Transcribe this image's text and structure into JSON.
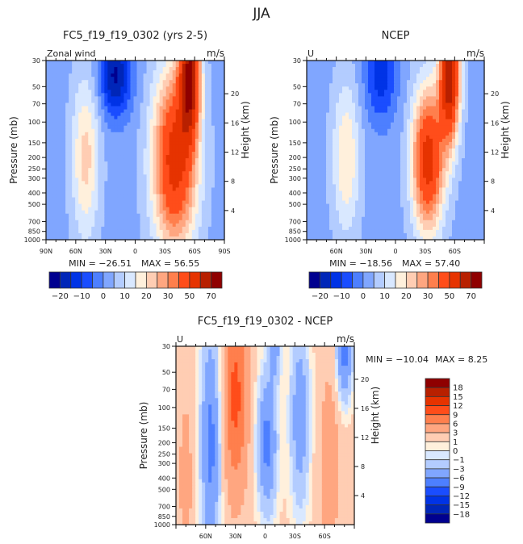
{
  "main_title": "JJA",
  "chart_data": [
    {
      "type": "heatmap",
      "id": "model",
      "title": "FC5_f19_f19_0302 (yrs 2-5)",
      "left_label": "Zonal wind",
      "units": "m/s",
      "ylabel": "Pressure (mb)",
      "y2label": "Height (km)",
      "x_ticks": [
        "90N",
        "60N",
        "30N",
        "0",
        "30S",
        "60S",
        "90S"
      ],
      "x_range": [
        90,
        -90
      ],
      "y_ticks": [
        30,
        50,
        70,
        100,
        150,
        200,
        250,
        300,
        400,
        500,
        700,
        850,
        1000
      ],
      "y_range": [
        30,
        1000
      ],
      "y2_ticks": [
        4,
        8,
        12,
        16,
        20
      ],
      "min_label": "MIN = −26.51",
      "max_label": "MAX =   56.55",
      "min": -26.51,
      "max": 56.55,
      "features": [
        {
          "lat": 20,
          "p": 40,
          "value": -26,
          "wlat": 16,
          "wlogp": 0.35
        },
        {
          "lat": 50,
          "p": 200,
          "value": 17,
          "wlat": 14,
          "wlogp": 0.7
        },
        {
          "lat": -40,
          "p": 210,
          "value": 45,
          "wlat": 22,
          "wlogp": 0.75
        },
        {
          "lat": -55,
          "p": 40,
          "value": 56,
          "wlat": 10,
          "wlogp": 0.5
        }
      ]
    },
    {
      "type": "heatmap",
      "id": "obs",
      "title": "NCEP",
      "left_label": "U",
      "units": "m/s",
      "ylabel": "Pressure (mb)",
      "y2label": "Height (km)",
      "x_ticks": [
        "60N",
        "30N",
        "0",
        "30S",
        "60S"
      ],
      "x_range": [
        90,
        -90
      ],
      "y_ticks": [
        30,
        50,
        70,
        100,
        150,
        200,
        250,
        300,
        400,
        500,
        700,
        850,
        1000
      ],
      "y_range": [
        30,
        1000
      ],
      "y2_ticks": [
        4,
        8,
        12,
        16,
        20
      ],
      "min_label": "MIN = −18.56",
      "max_label": "MAX =   57.40",
      "min": -18.56,
      "max": 57.4,
      "features": [
        {
          "lat": 15,
          "p": 40,
          "value": -18,
          "wlat": 16,
          "wlogp": 0.4
        },
        {
          "lat": 50,
          "p": 200,
          "value": 15,
          "wlat": 14,
          "wlogp": 0.65
        },
        {
          "lat": -33,
          "p": 210,
          "value": 45,
          "wlat": 16,
          "wlogp": 0.6
        },
        {
          "lat": -55,
          "p": 40,
          "value": 57,
          "wlat": 10,
          "wlogp": 0.55
        }
      ]
    },
    {
      "type": "heatmap",
      "id": "diff",
      "title": "FC5_f19_f19_0302 - NCEP",
      "left_label": "U",
      "units": "m/s",
      "ylabel": "Pressure (mb)",
      "y2label": "Height (km)",
      "x_ticks": [
        "60N",
        "30N",
        "0",
        "30S",
        "60S"
      ],
      "x_range": [
        90,
        -90
      ],
      "y_ticks": [
        30,
        50,
        70,
        100,
        150,
        200,
        250,
        300,
        400,
        500,
        700,
        850,
        1000
      ],
      "y_range": [
        30,
        1000
      ],
      "y2_ticks": [
        4,
        8,
        12,
        16,
        20
      ],
      "min_label": "MIN = −10.04",
      "max_label": "MAX =    8.25",
      "min": -10.04,
      "max": 8.25,
      "features": [
        {
          "lat": 55,
          "p": 200,
          "value": 7,
          "wlat": 10,
          "wlogp": 1.0
        },
        {
          "lat": 30,
          "p": 80,
          "value": -10,
          "wlat": 12,
          "wlogp": 0.8
        },
        {
          "lat": -2,
          "p": 200,
          "value": 7,
          "wlat": 10,
          "wlogp": 0.6
        },
        {
          "lat": -35,
          "p": 120,
          "value": 5,
          "wlat": 10,
          "wlogp": 0.8
        },
        {
          "lat": -65,
          "p": 300,
          "value": -5,
          "wlat": 10,
          "wlogp": 0.8
        },
        {
          "lat": -80,
          "p": 35,
          "value": 7,
          "wlat": 8,
          "wlogp": 0.4
        },
        {
          "lat": 80,
          "p": 400,
          "value": -4,
          "wlat": 8,
          "wlogp": 0.8
        },
        {
          "lat": -10,
          "p": 30,
          "value": 4,
          "wlat": 6,
          "wlogp": 0.3
        }
      ]
    }
  ],
  "colorbars": {
    "full": {
      "labels": [
        "−20",
        "−10",
        "0",
        "10",
        "20",
        "30",
        "50",
        "70"
      ],
      "colors": [
        "#00008f",
        "#0026b8",
        "#0033e6",
        "#1a4dff",
        "#4d7fff",
        "#80a6ff",
        "#b3ccff",
        "#d9e8ff",
        "#fff0dc",
        "#ffcdb3",
        "#ffa680",
        "#ff7f4d",
        "#ff4d1a",
        "#e63300",
        "#b82000",
        "#8f0000"
      ]
    },
    "diff": {
      "labels": [
        "18",
        "15",
        "12",
        "9",
        "6",
        "3",
        "1",
        "0",
        "−1",
        "−3",
        "−6",
        "−9",
        "−12",
        "−15",
        "−18"
      ],
      "colors": [
        "#8f0000",
        "#b82000",
        "#e63300",
        "#ff4d1a",
        "#ff7f4d",
        "#ffa680",
        "#ffcdb3",
        "#fff0dc",
        "#d9e8ff",
        "#b3ccff",
        "#80a6ff",
        "#4d7fff",
        "#1a4dff",
        "#0033e6",
        "#0026b8",
        "#00008f"
      ]
    },
    "full_levels": [
      -25,
      -20,
      -15,
      -10,
      -5,
      0,
      5,
      10,
      15,
      20,
      25,
      30,
      40,
      50,
      60,
      70
    ],
    "diff_levels": [
      -18,
      -15,
      -12,
      -9,
      -6,
      -3,
      -1,
      0,
      1,
      3,
      6,
      9,
      12,
      15,
      18
    ]
  }
}
